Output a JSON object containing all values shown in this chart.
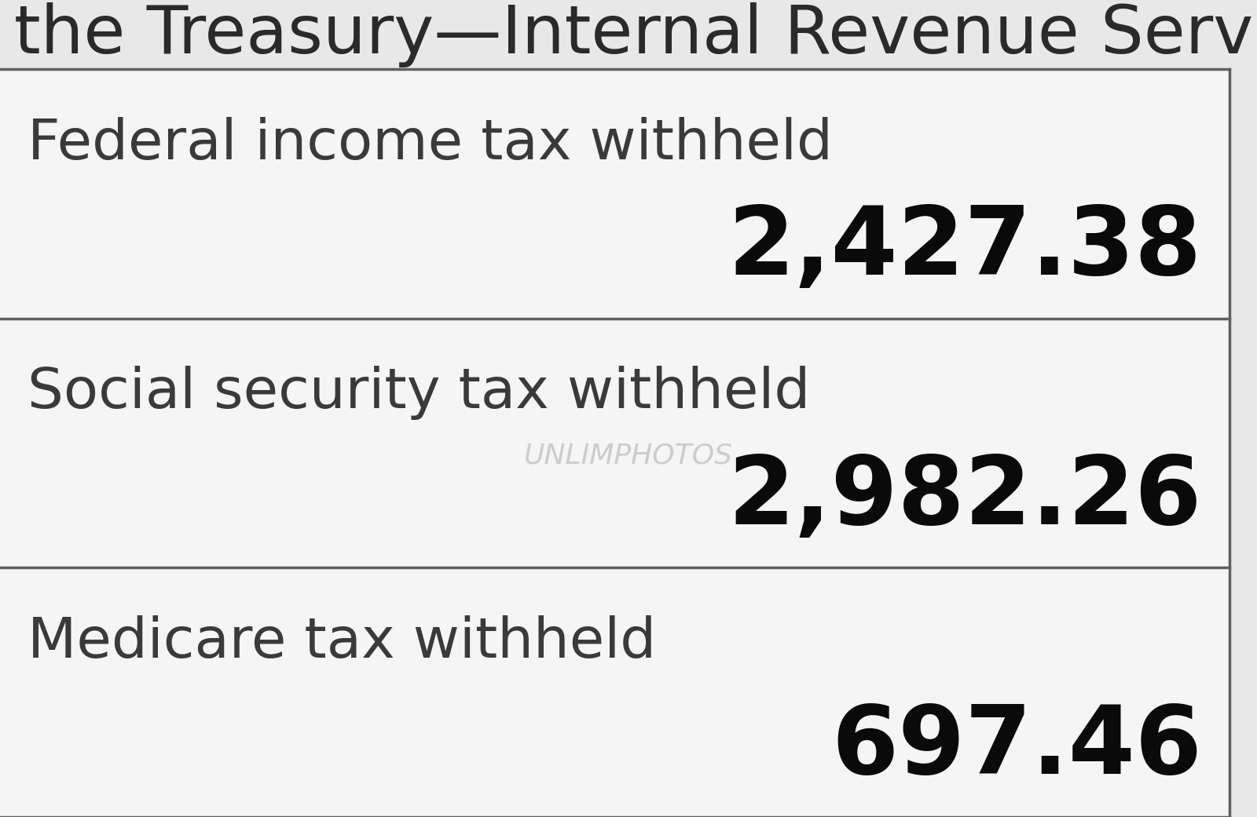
{
  "background_color": "#e8e8e8",
  "cell_bg": "#f5f5f5",
  "header_text": "the Treasury—Internal Revenue Service",
  "header_fontsize": 62,
  "header_color": "#2a2a2a",
  "rows": [
    {
      "label": "Federal income tax withheld",
      "value": "2,427.38",
      "label_fontsize": 52,
      "value_fontsize": 88,
      "label_color": "#3a3a3a",
      "value_color": "#0a0a0a"
    },
    {
      "label": "Social security tax withheld",
      "value": "2,982.26",
      "label_fontsize": 52,
      "value_fontsize": 88,
      "label_color": "#3a3a3a",
      "value_color": "#0a0a0a"
    },
    {
      "label": "Medicare tax withheld",
      "value": "697.46",
      "label_fontsize": 52,
      "value_fontsize": 88,
      "label_color": "#3a3a3a",
      "value_color": "#0a0a0a"
    }
  ],
  "line_color": "#606060",
  "line_width": 2.5,
  "watermark_text": "UNLIMPHOTOS",
  "watermark_color": "#909090",
  "watermark_alpha": 0.4,
  "watermark_fontsize": 26,
  "fig_width": 16.0,
  "fig_height": 10.41,
  "dpi": 100
}
